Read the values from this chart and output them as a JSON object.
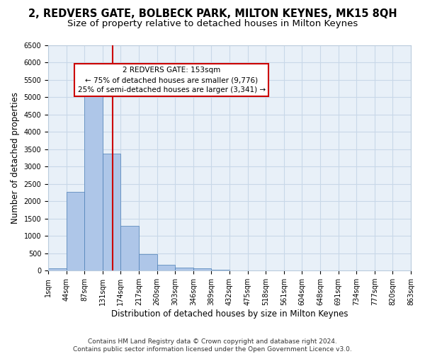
{
  "title": "2, REDVERS GATE, BOLBECK PARK, MILTON KEYNES, MK15 8QH",
  "subtitle": "Size of property relative to detached houses in Milton Keynes",
  "xlabel": "Distribution of detached houses by size in Milton Keynes",
  "ylabel": "Number of detached properties",
  "footer_line1": "Contains HM Land Registry data © Crown copyright and database right 2024.",
  "footer_line2": "Contains public sector information licensed under the Open Government Licence v3.0.",
  "bin_edges": [
    "1sqm",
    "44sqm",
    "87sqm",
    "131sqm",
    "174sqm",
    "217sqm",
    "260sqm",
    "303sqm",
    "346sqm",
    "389sqm",
    "432sqm",
    "475sqm",
    "518sqm",
    "561sqm",
    "604sqm",
    "648sqm",
    "691sqm",
    "734sqm",
    "777sqm",
    "820sqm",
    "863sqm"
  ],
  "bar_values": [
    70,
    2280,
    5400,
    3380,
    1290,
    480,
    160,
    90,
    70,
    30,
    5,
    5,
    0,
    0,
    0,
    0,
    0,
    0,
    0,
    0
  ],
  "bar_color": "#aec6e8",
  "bar_edge_color": "#4a7eb5",
  "vline_x": 3.55,
  "vline_color": "#cc0000",
  "annotation_text": "2 REDVERS GATE: 153sqm\n← 75% of detached houses are smaller (9,776)\n25% of semi-detached houses are larger (3,341) →",
  "annotation_box_color": "#cc0000",
  "annotation_text_color": "#000000",
  "ylim": [
    0,
    6500
  ],
  "yticks": [
    0,
    500,
    1000,
    1500,
    2000,
    2500,
    3000,
    3500,
    4000,
    4500,
    5000,
    5500,
    6000,
    6500
  ],
  "grid_color": "#c8d8e8",
  "bg_color": "#e8f0f8",
  "fig_bg_color": "#ffffff",
  "title_fontsize": 10.5,
  "subtitle_fontsize": 9.5,
  "axis_fontsize": 8.5,
  "tick_fontsize": 7,
  "footer_fontsize": 6.5
}
